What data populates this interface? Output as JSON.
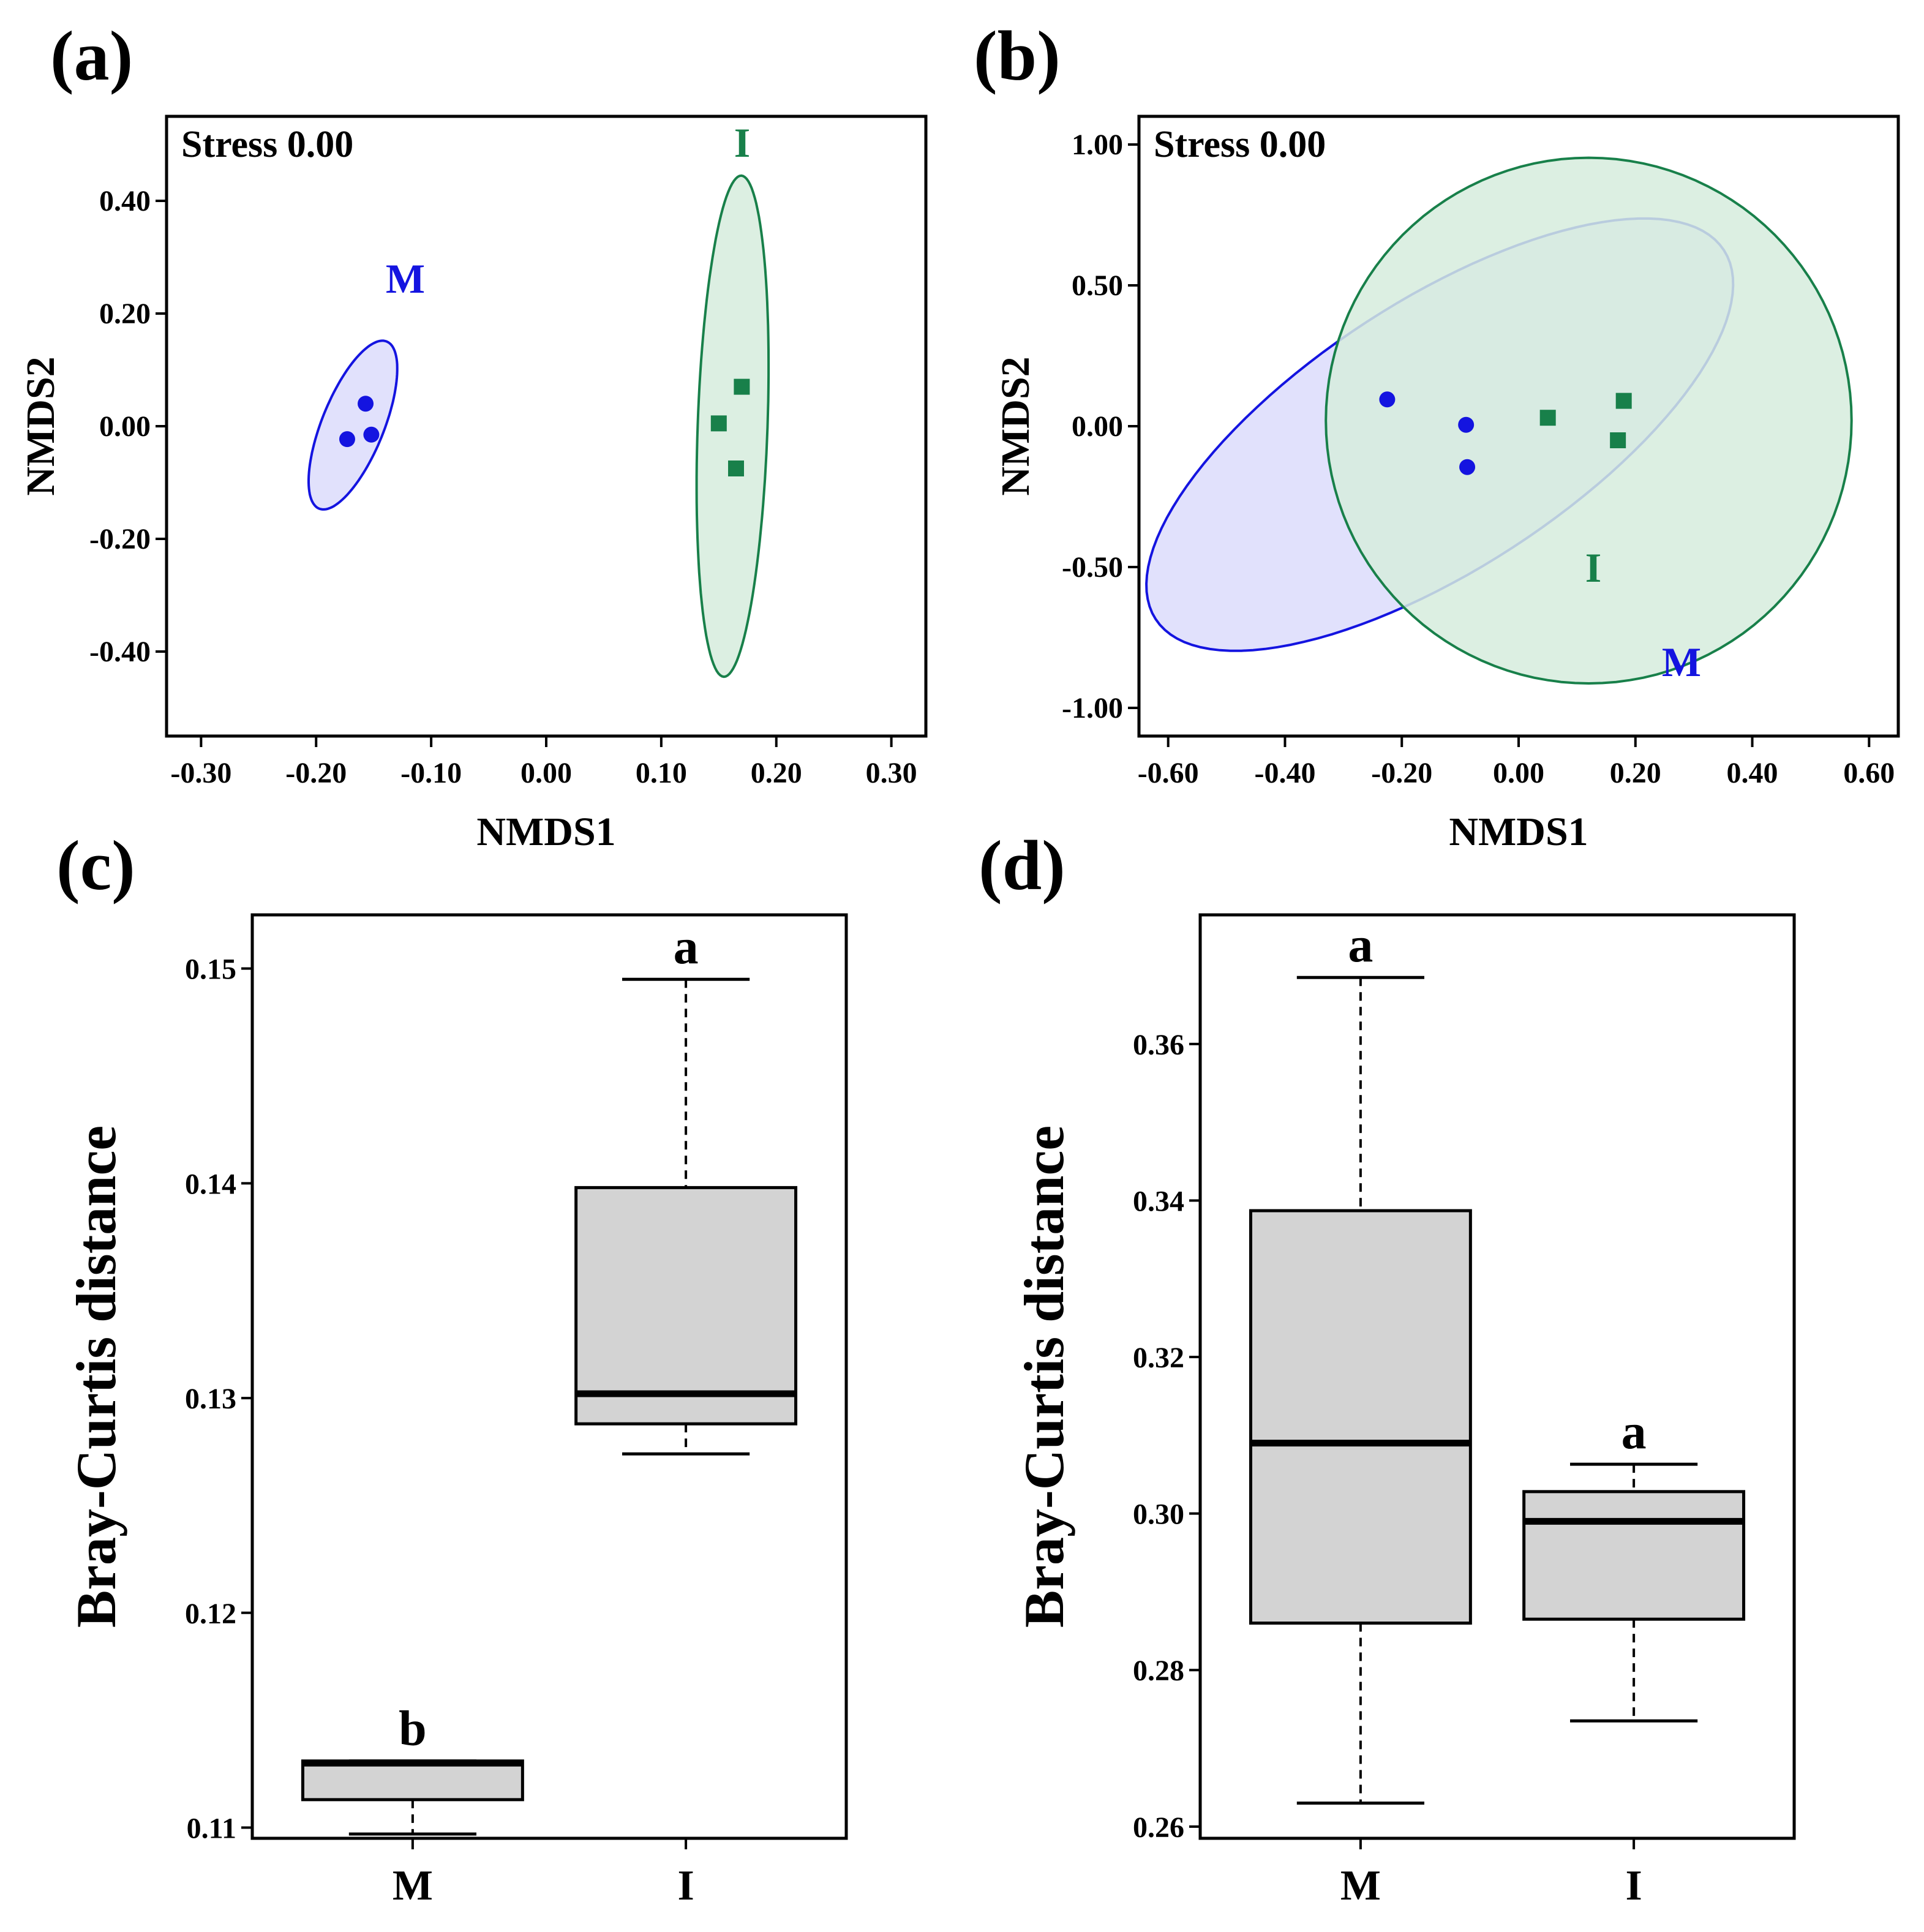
{
  "colors": {
    "M": "#1414e0",
    "I": "#18804a",
    "M_fill": "#dcdcfb",
    "I_fill": "#d6ecdd",
    "box_fill": "#d3d3d3"
  },
  "chart_data": [
    {
      "panel": "(a)",
      "type": "scatter",
      "stress": "Stress 0.00",
      "xlabel": "NMDS1",
      "ylabel": "NMDS2",
      "xlim": [
        -0.33,
        0.33
      ],
      "ylim": [
        -0.55,
        0.55
      ],
      "xticks": [
        "-0.30",
        "-0.20",
        "-0.10",
        "0.00",
        "0.10",
        "0.20",
        "0.30"
      ],
      "yticks": [
        "-0.40",
        "-0.20",
        "0.00",
        "0.20",
        "0.40"
      ],
      "series": [
        {
          "name": "M",
          "marker": "circle",
          "label": "M",
          "points": [
            [
              -0.157,
              0.04
            ],
            [
              -0.152,
              -0.015
            ],
            [
              -0.173,
              -0.023
            ]
          ],
          "ellipse": {
            "cx": -0.168,
            "cy": 0.002,
            "rx": 0.16,
            "ry": 0.055,
            "angle": 68
          }
        },
        {
          "name": "I",
          "marker": "square",
          "label": "I",
          "points": [
            [
              0.17,
              0.07
            ],
            [
              0.15,
              0.005
            ],
            [
              0.165,
              -0.075
            ]
          ],
          "ellipse": {
            "cx": 0.162,
            "cy": 0.0,
            "rx": 0.445,
            "ry": 0.062,
            "angle": 88
          }
        }
      ]
    },
    {
      "panel": "(b)",
      "type": "scatter",
      "stress": "Stress 0.00",
      "xlabel": "NMDS1",
      "ylabel": "NMDS2",
      "xlim": [
        -0.65,
        0.65
      ],
      "ylim": [
        -1.1,
        1.1
      ],
      "xticks": [
        "-0.60",
        "-0.40",
        "-0.20",
        "0.00",
        "0.20",
        "0.40",
        "0.60"
      ],
      "yticks": [
        "-1.00",
        "-0.50",
        "0.00",
        "0.50",
        "1.00"
      ],
      "series": [
        {
          "name": "M",
          "marker": "circle",
          "label": "M",
          "points": [
            [
              -0.225,
              0.095
            ],
            [
              -0.09,
              0.005
            ],
            [
              -0.088,
              -0.145
            ]
          ],
          "ellipse": {
            "cx": -0.135,
            "cy": -0.03,
            "rx": 0.58,
            "ry": 0.23,
            "angle": 33
          }
        },
        {
          "name": "I",
          "marker": "square",
          "label": "I",
          "points": [
            [
              0.05,
              0.03
            ],
            [
              0.18,
              0.09
            ],
            [
              0.17,
              -0.05
            ]
          ],
          "ellipse": {
            "cx": 0.12,
            "cy": 0.02,
            "rx": 0.45,
            "ry": 0.45,
            "angle": 0
          }
        }
      ]
    },
    {
      "panel": "(c)",
      "type": "box",
      "ylabel": "Bray-Curtis distance",
      "ylim": [
        0.1095,
        0.1525
      ],
      "yticks": [
        "0.11",
        "0.12",
        "0.13",
        "0.14",
        "0.15"
      ],
      "categories": [
        "M",
        "I"
      ],
      "boxes": [
        {
          "name": "M",
          "min": 0.1097,
          "q1": 0.1113,
          "median": 0.113,
          "q3": 0.1131,
          "max": 0.1131,
          "sig": "b"
        },
        {
          "name": "I",
          "min": 0.1274,
          "q1": 0.1288,
          "median": 0.1302,
          "q3": 0.1398,
          "max": 0.1495,
          "sig": "a"
        }
      ]
    },
    {
      "panel": "(d)",
      "type": "box",
      "ylabel": "Bray-Curtis distance",
      "ylim": [
        0.2585,
        0.3765
      ],
      "yticks": [
        "0.26",
        "0.28",
        "0.30",
        "0.32",
        "0.34",
        "0.36"
      ],
      "categories": [
        "M",
        "I"
      ],
      "boxes": [
        {
          "name": "M",
          "min": 0.263,
          "q1": 0.286,
          "median": 0.309,
          "q3": 0.3387,
          "max": 0.3685,
          "sig": "a"
        },
        {
          "name": "I",
          "min": 0.2735,
          "q1": 0.2865,
          "median": 0.299,
          "q3": 0.3028,
          "max": 0.3063,
          "sig": "a"
        }
      ]
    }
  ]
}
